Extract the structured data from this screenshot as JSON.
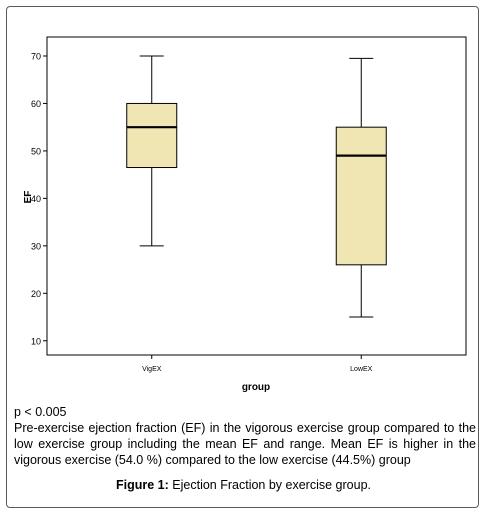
{
  "chart_data": {
    "type": "box",
    "xlabel": "group",
    "ylabel": "EF",
    "ylim": [
      7,
      74
    ],
    "yticks": [
      10,
      20,
      30,
      40,
      50,
      60,
      70
    ],
    "categories": [
      "VigEX",
      "LowEX"
    ],
    "boxes": [
      {
        "category": "VigEX",
        "min": 30,
        "q1": 46.5,
        "median": 55,
        "q3": 60,
        "max": 70
      },
      {
        "category": "LowEX",
        "min": 15,
        "q1": 26,
        "median": 49,
        "q3": 55,
        "max": 69.5
      }
    ],
    "box_fill": "#efe6b4",
    "grid": false
  },
  "caption": {
    "p_value": "p < 0.005",
    "description": "Pre-exercise ejection fraction (EF) in the vigorous exercise group compared to the low exercise group including the mean EF and range. Mean EF is higher in the vigorous exercise (54.0 %) compared to the low exercise (44.5%) group",
    "figure_label": "Figure 1:",
    "figure_title": "Ejection Fraction by exercise group."
  }
}
